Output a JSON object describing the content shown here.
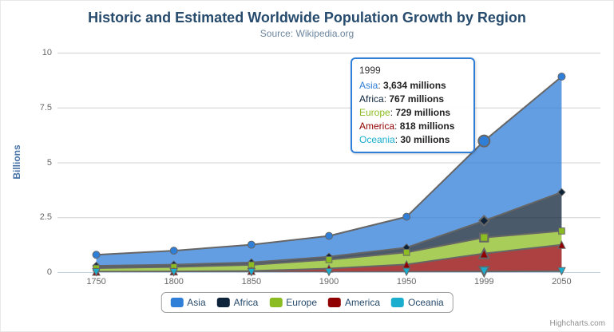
{
  "chart": {
    "title": "Historic and Estimated Worldwide Population Growth by Region",
    "subtitle": "Source: Wikipedia.org",
    "y_axis_title": "Billions",
    "credits": "Highcharts.com"
  },
  "palette": {
    "grid": "#d0d0d0",
    "axis_line": "#c0d0e0",
    "axis_label": "#666666",
    "series_line": "#666666",
    "title": "#274b6d",
    "subtitle": "#6d869f",
    "legend_label": "#274b6d",
    "legend_border": "#a0a0a0",
    "credits": "#909090"
  },
  "chart_data": {
    "type": "area",
    "stacking": "normal",
    "title": "Historic and Estimated Worldwide Population Growth by Region",
    "subtitle": "Source: Wikipedia.org",
    "xlabel": "",
    "ylabel": "Billions",
    "ylim": [
      0,
      10
    ],
    "yticks": [
      "0",
      "2.5",
      "5",
      "7.5",
      "10"
    ],
    "ytick_values": [
      0,
      2.5,
      5,
      7.5,
      10
    ],
    "grid": true,
    "legend_position": "bottom",
    "unit": "millions",
    "categories": [
      "1750",
      "1800",
      "1850",
      "1900",
      "1950",
      "1999",
      "2050"
    ],
    "series": [
      {
        "name": "Asia",
        "color": "#2f7ed8",
        "marker": "circle",
        "values": [
          502,
          635,
          809,
          947,
          1402,
          3634,
          5268
        ]
      },
      {
        "name": "Africa",
        "color": "#0d233a",
        "marker": "diamond",
        "values": [
          106,
          107,
          111,
          133,
          221,
          767,
          1766
        ]
      },
      {
        "name": "Europe",
        "color": "#8bbc21",
        "marker": "square",
        "values": [
          163,
          203,
          276,
          408,
          547,
          729,
          628
        ]
      },
      {
        "name": "America",
        "color": "#910000",
        "marker": "triangle",
        "values": [
          18,
          31,
          54,
          156,
          339,
          818,
          1201
        ]
      },
      {
        "name": "Oceania",
        "color": "#1aadce",
        "marker": "triangle-down",
        "values": [
          2,
          2,
          2,
          6,
          13,
          30,
          46
        ]
      }
    ]
  },
  "tooltip": {
    "header": "1999",
    "hover_index": 5,
    "border_color": "#2f7ed8",
    "rows": [
      {
        "name": "Asia",
        "color": "#2f7ed8",
        "value": "3,634 millions"
      },
      {
        "name": "Africa",
        "color": "#0d233a",
        "value": "767 millions"
      },
      {
        "name": "Europe",
        "color": "#8bbc21",
        "value": "729 millions"
      },
      {
        "name": "America",
        "color": "#910000",
        "value": "818 millions"
      },
      {
        "name": "Oceania",
        "color": "#1aadce",
        "value": "30 millions"
      }
    ]
  },
  "legend": {
    "items": [
      {
        "label": "Asia",
        "color": "#2f7ed8"
      },
      {
        "label": "Africa",
        "color": "#0d233a"
      },
      {
        "label": "Europe",
        "color": "#8bbc21"
      },
      {
        "label": "America",
        "color": "#910000"
      },
      {
        "label": "Oceania",
        "color": "#1aadce"
      }
    ]
  }
}
